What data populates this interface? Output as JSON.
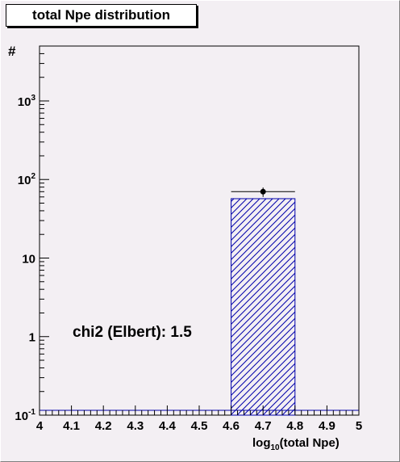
{
  "chart_data": {
    "type": "bar",
    "title": "total Npe distribution",
    "ylabel": "#",
    "xlabel": "log",
    "xlabel_subscript": "10",
    "xlabel_tail": "(total Npe)",
    "annotation": "chi2 (Elbert): 1.5",
    "xlim": [
      4,
      5
    ],
    "ylim": [
      0.1,
      5000
    ],
    "yscale": "log",
    "grid": false,
    "x_ticks": [
      "4",
      "4.1",
      "4.2",
      "4.3",
      "4.4",
      "4.5",
      "4.6",
      "4.7",
      "4.8",
      "4.9",
      "5"
    ],
    "y_ticks": [
      {
        "base": "10",
        "exp": "-1",
        "value": 0.1
      },
      {
        "base": "1",
        "exp": "",
        "value": 1
      },
      {
        "base": "10",
        "exp": "",
        "value": 10
      },
      {
        "base": "10",
        "exp": "2",
        "value": 100
      },
      {
        "base": "10",
        "exp": "3",
        "value": 1000
      }
    ],
    "histogram": {
      "bins": [
        {
          "x0": 4.6,
          "x1": 4.8,
          "value": 57
        }
      ],
      "fill": "hatched",
      "color": "#0000aa"
    },
    "points": [
      {
        "x": 4.7,
        "y": 70,
        "xerr": 0.1,
        "yerr_low": 10,
        "yerr_high": 9
      }
    ]
  }
}
